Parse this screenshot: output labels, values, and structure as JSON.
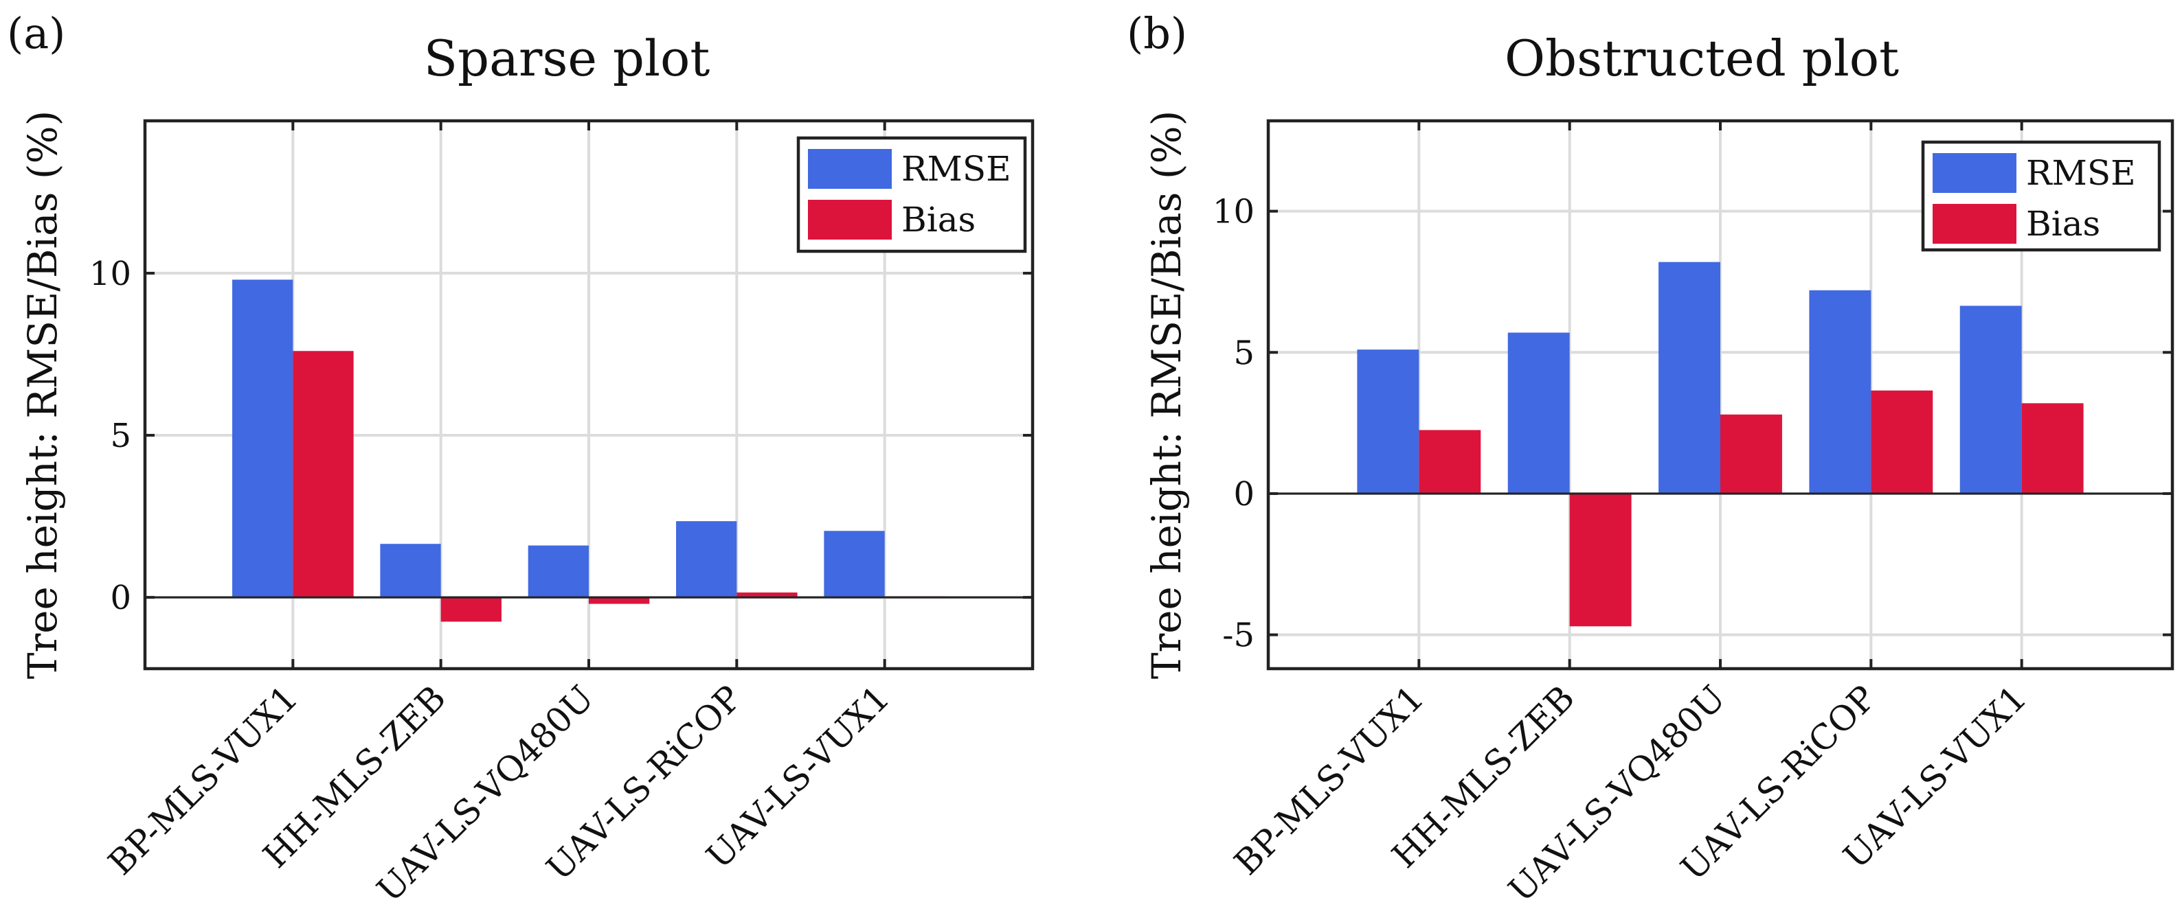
{
  "figure": {
    "panels": [
      {
        "label": "(a)",
        "title": "Sparse plot"
      },
      {
        "label": "(b)",
        "title": "Obstructed plot"
      }
    ]
  },
  "chart_data": [
    {
      "type": "bar",
      "panel_label": "(a)",
      "title": "Sparse plot",
      "xlabel": "",
      "ylabel": "Tree height:  RMSE/Bias (%)",
      "categories": [
        "BP-MLS-VUX1",
        "HH-MLS-ZEB",
        "UAV-LS-VQ480U",
        "UAV-LS-RiCOP",
        "UAV-LS-VUX1"
      ],
      "series": [
        {
          "name": "RMSE",
          "color": "#4169e1",
          "values": [
            9.8,
            1.65,
            1.6,
            2.35,
            2.05
          ]
        },
        {
          "name": "Bias",
          "color": "#dc143c",
          "values": [
            7.6,
            -0.75,
            -0.2,
            0.15,
            0.03
          ]
        }
      ],
      "ylim": [
        -2.2,
        14.7
      ],
      "yticks": [
        0,
        5,
        10
      ],
      "ytick_labels": [
        "0",
        "5",
        "10"
      ],
      "grid": true,
      "legend": "top-right"
    },
    {
      "type": "bar",
      "panel_label": "(b)",
      "title": "Obstructed plot",
      "xlabel": "",
      "ylabel": "Tree height:  RMSE/Bias (%)",
      "categories": [
        "BP-MLS-VUX1",
        "HH-MLS-ZEB",
        "UAV-LS-VQ480U",
        "UAV-LS-RiCOP",
        "UAV-LS-VUX1"
      ],
      "series": [
        {
          "name": "RMSE",
          "color": "#4169e1",
          "values": [
            5.1,
            5.7,
            8.2,
            7.2,
            6.65
          ]
        },
        {
          "name": "Bias",
          "color": "#dc143c",
          "values": [
            2.25,
            -4.7,
            2.8,
            3.65,
            3.2
          ]
        }
      ],
      "ylim": [
        -6.2,
        13.2
      ],
      "yticks": [
        -5,
        0,
        5,
        10
      ],
      "ytick_labels": [
        "-5",
        "0",
        "5",
        "10"
      ],
      "grid": true,
      "legend": "top-right"
    }
  ]
}
